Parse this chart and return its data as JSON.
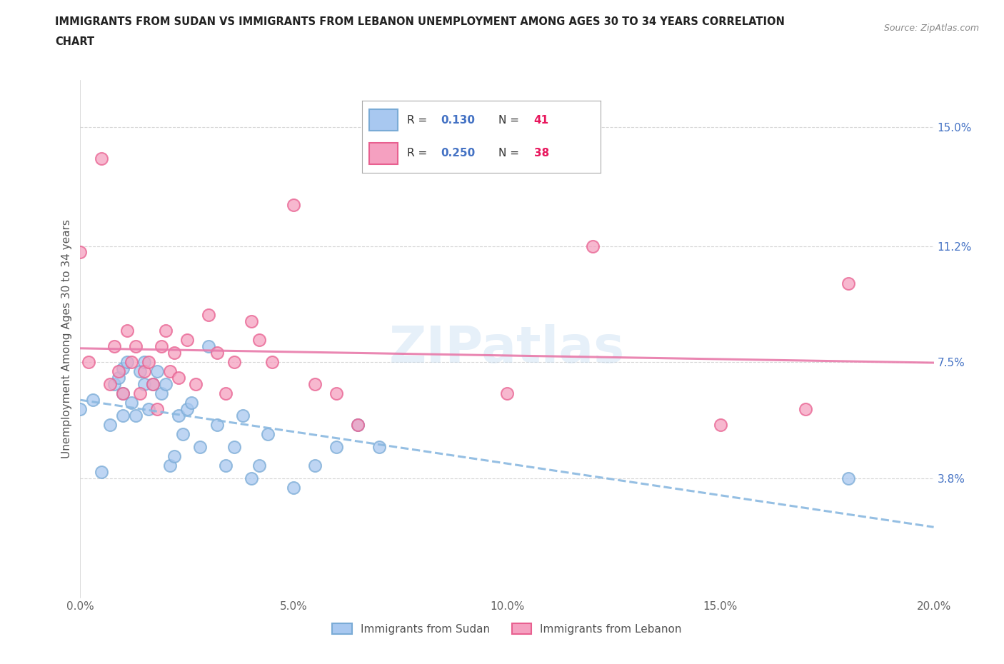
{
  "title_line1": "IMMIGRANTS FROM SUDAN VS IMMIGRANTS FROM LEBANON UNEMPLOYMENT AMONG AGES 30 TO 34 YEARS CORRELATION",
  "title_line2": "CHART",
  "source_text": "Source: ZipAtlas.com",
  "ylabel": "Unemployment Among Ages 30 to 34 years",
  "xlim": [
    0.0,
    0.2
  ],
  "ylim": [
    0.0,
    0.165
  ],
  "xticks": [
    0.0,
    0.05,
    0.1,
    0.15,
    0.2
  ],
  "xtick_labels": [
    "0.0%",
    "5.0%",
    "10.0%",
    "15.0%",
    "20.0%"
  ],
  "ytick_values": [
    0.038,
    0.075,
    0.112,
    0.15
  ],
  "ytick_labels": [
    "3.8%",
    "7.5%",
    "11.2%",
    "15.0%"
  ],
  "legend_sudan_R": "0.130",
  "legend_sudan_N": "41",
  "legend_lebanon_R": "0.250",
  "legend_lebanon_N": "38",
  "color_sudan": "#a8c8f0",
  "color_lebanon": "#f5a0c0",
  "color_sudan_edge": "#7aabd6",
  "color_lebanon_edge": "#e86090",
  "color_sudan_line": "#8ab8e0",
  "color_lebanon_line": "#e87aaa",
  "background_color": "#ffffff",
  "grid_color": "#cccccc",
  "watermark_text": "ZIPatlas",
  "sudan_x": [
    0.0,
    0.003,
    0.005,
    0.007,
    0.008,
    0.009,
    0.01,
    0.01,
    0.01,
    0.011,
    0.012,
    0.013,
    0.014,
    0.015,
    0.015,
    0.016,
    0.017,
    0.018,
    0.019,
    0.02,
    0.021,
    0.022,
    0.023,
    0.024,
    0.025,
    0.026,
    0.028,
    0.03,
    0.032,
    0.034,
    0.036,
    0.038,
    0.04,
    0.042,
    0.044,
    0.05,
    0.055,
    0.06,
    0.065,
    0.07,
    0.18
  ],
  "sudan_y": [
    0.06,
    0.063,
    0.04,
    0.055,
    0.068,
    0.07,
    0.073,
    0.065,
    0.058,
    0.075,
    0.062,
    0.058,
    0.072,
    0.068,
    0.075,
    0.06,
    0.068,
    0.072,
    0.065,
    0.068,
    0.042,
    0.045,
    0.058,
    0.052,
    0.06,
    0.062,
    0.048,
    0.08,
    0.055,
    0.042,
    0.048,
    0.058,
    0.038,
    0.042,
    0.052,
    0.035,
    0.042,
    0.048,
    0.055,
    0.048,
    0.038
  ],
  "lebanon_x": [
    0.0,
    0.002,
    0.005,
    0.007,
    0.008,
    0.009,
    0.01,
    0.011,
    0.012,
    0.013,
    0.014,
    0.015,
    0.016,
    0.017,
    0.018,
    0.019,
    0.02,
    0.021,
    0.022,
    0.023,
    0.025,
    0.027,
    0.03,
    0.032,
    0.034,
    0.036,
    0.04,
    0.042,
    0.045,
    0.05,
    0.055,
    0.06,
    0.065,
    0.1,
    0.12,
    0.15,
    0.17,
    0.18
  ],
  "lebanon_y": [
    0.11,
    0.075,
    0.14,
    0.068,
    0.08,
    0.072,
    0.065,
    0.085,
    0.075,
    0.08,
    0.065,
    0.072,
    0.075,
    0.068,
    0.06,
    0.08,
    0.085,
    0.072,
    0.078,
    0.07,
    0.082,
    0.068,
    0.09,
    0.078,
    0.065,
    0.075,
    0.088,
    0.082,
    0.075,
    0.125,
    0.068,
    0.065,
    0.055,
    0.065,
    0.112,
    0.055,
    0.06,
    0.1
  ]
}
